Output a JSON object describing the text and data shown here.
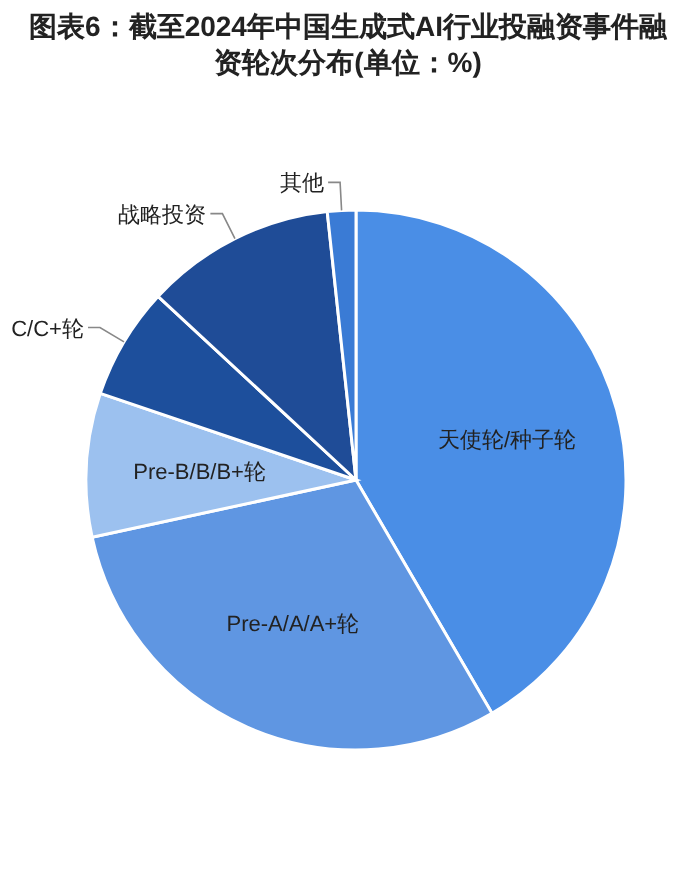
{
  "chart_data": {
    "type": "pie",
    "title": "图表6：截至2024年中国生成式AI行业投融资事件融资轮次分布(单位：%)",
    "categories": [
      "天使轮/种子轮",
      "Pre-A/A/A+轮",
      "Pre-B/B/B+轮",
      "C/C+轮",
      "战略投资",
      "其他"
    ],
    "values": [
      41.6,
      30,
      8.6,
      6.7,
      11.4,
      1.7
    ],
    "colors": [
      "#4a8ee6",
      "#5f96e2",
      "#9cc1ef",
      "#1d4f9c",
      "#1f4c97",
      "#3a7bd5"
    ]
  }
}
